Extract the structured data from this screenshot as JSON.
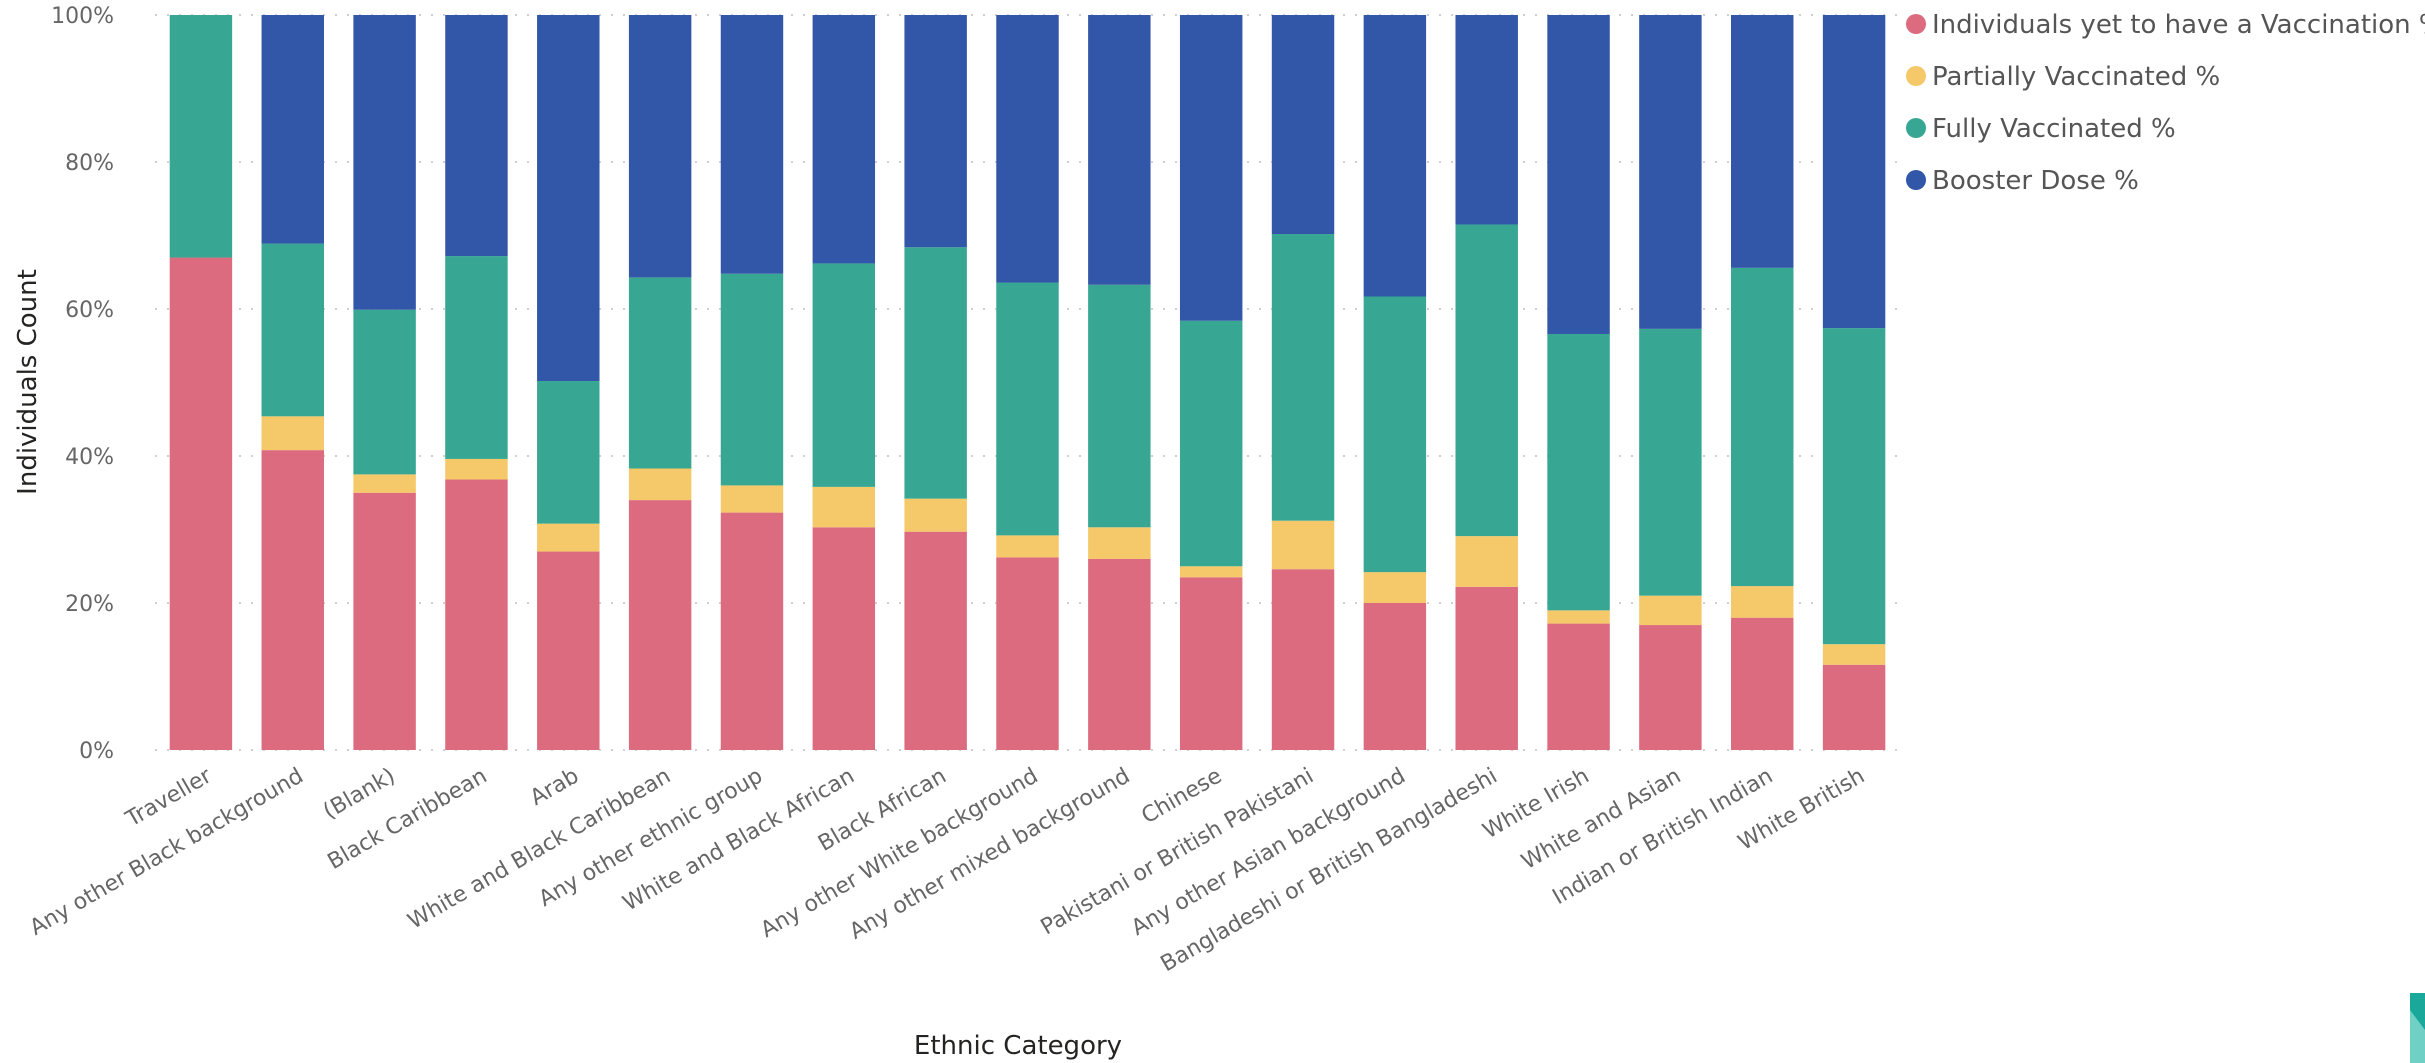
{
  "chart_data": {
    "type": "bar",
    "stacked": "percent",
    "xlabel": "Ethnic Category",
    "ylabel": "Individuals Count",
    "ylim": [
      0,
      100
    ],
    "yticks": [
      "0%",
      "20%",
      "40%",
      "60%",
      "80%",
      "100%"
    ],
    "grid": true,
    "legend_position": "top-right",
    "categories": [
      "Traveller",
      "Any other Black background",
      "(Blank)",
      "Black Caribbean",
      "Arab",
      "White and Black Caribbean",
      "Any other ethnic group",
      "White and Black African",
      "Black African",
      "Any other White background",
      "Any other mixed background",
      "Chinese",
      "Pakistani or British Pakistani",
      "Any other Asian background",
      "Bangladeshi or British Bangladeshi",
      "White Irish",
      "White and Asian",
      "Indian or British Indian",
      "White British"
    ],
    "series": [
      {
        "name": "Individuals yet to have a Vaccination %",
        "color": "#dd6b7f",
        "values": [
          67,
          40.8,
          35,
          36.8,
          27,
          34,
          32.3,
          30.3,
          29.7,
          26.2,
          26,
          23.5,
          24.6,
          20,
          22.2,
          17.2,
          17,
          18,
          11.6
        ]
      },
      {
        "name": "Partially Vaccinated %",
        "color": "#f5c869",
        "values": [
          0,
          4.6,
          2.5,
          2.8,
          3.8,
          4.3,
          3.7,
          5.5,
          4.5,
          3,
          4.3,
          1.5,
          6.6,
          4.2,
          6.9,
          1.8,
          4,
          4.3,
          2.8
        ]
      },
      {
        "name": "Fully Vaccinated %",
        "color": "#37a794",
        "values": [
          33,
          23.5,
          22.4,
          27.6,
          19.4,
          26,
          28.8,
          30.4,
          34.2,
          34.4,
          33,
          33.4,
          39,
          37.5,
          42.4,
          37.6,
          36.3,
          43.3,
          43
        ]
      },
      {
        "name": "Booster Dose %",
        "color": "#3257a8",
        "values": [
          0,
          31.1,
          40.1,
          32.8,
          49.8,
          35.7,
          35.2,
          33.8,
          31.6,
          36.4,
          36.7,
          41.6,
          29.8,
          38.3,
          28.5,
          43.4,
          42.7,
          34.4,
          42.6
        ]
      }
    ]
  }
}
